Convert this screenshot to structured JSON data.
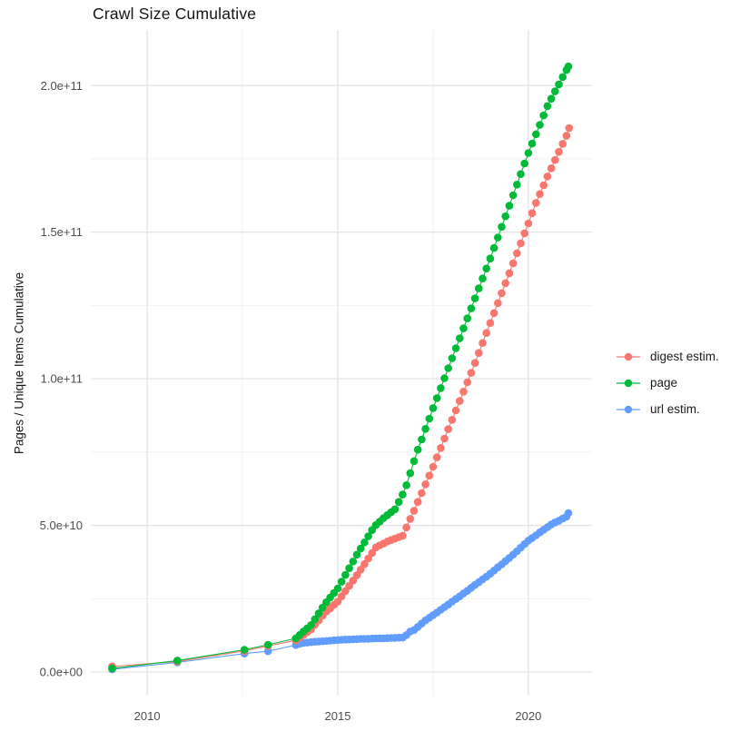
{
  "title": "Crawl Size Cumulative",
  "y_axis_title": "Pages / Unique Items Cumulative",
  "colors": {
    "digest": "#F8766D",
    "page": "#00BA38",
    "url": "#619CFF",
    "grid_major": "#E3E3E3",
    "grid_minor": "#EFEFEF",
    "tick_text": "#4D4D4D",
    "title_text": "#141414",
    "background": "#FFFFFF"
  },
  "legend": {
    "items": [
      {
        "label": "digest estim.",
        "color": "#F8766D"
      },
      {
        "label": "page",
        "color": "#00BA38"
      },
      {
        "label": "url estim.",
        "color": "#619CFF"
      }
    ]
  },
  "chart_data": {
    "type": "scatter",
    "title": "Crawl Size Cumulative",
    "xlabel": "",
    "ylabel": "Pages / Unique Items Cumulative",
    "legend_position": "right",
    "grid": true,
    "xlim": [
      2008.52,
      2021.67
    ],
    "ylim_e9": [
      -8.05,
      218.95
    ],
    "value_scale": 1000000000.0,
    "x_breaks": [
      {
        "v": 2010,
        "label": "2010"
      },
      {
        "v": 2015,
        "label": "2015"
      },
      {
        "v": 2020,
        "label": "2020"
      }
    ],
    "x_minor_breaks": [
      2012.5,
      2017.5
    ],
    "y_breaks": [
      {
        "v": 0,
        "label": "0.0e+00"
      },
      {
        "v": 50,
        "label": "5.0e+10"
      },
      {
        "v": 100,
        "label": "1.0e+11"
      },
      {
        "v": 150,
        "label": "1.5e+11"
      },
      {
        "v": 200,
        "label": "2.0e+11"
      }
    ],
    "y_minor_breaks": [
      25,
      75,
      125,
      175
    ],
    "series": [
      {
        "name": "url estim.",
        "color": "#619CFF",
        "points": [
          [
            2009.08,
            0.9
          ],
          [
            2010.79,
            3.3
          ],
          [
            2012.55,
            6.3
          ],
          [
            2013.17,
            7.1
          ],
          [
            2013.9,
            9.2
          ],
          [
            2014.0,
            9.6
          ],
          [
            2014.1,
            9.9
          ],
          [
            2014.2,
            10.05
          ],
          [
            2014.3,
            10.2
          ],
          [
            2014.4,
            10.3
          ],
          [
            2014.5,
            10.4
          ],
          [
            2014.6,
            10.5
          ],
          [
            2014.7,
            10.6
          ],
          [
            2014.8,
            10.7
          ],
          [
            2014.9,
            10.8
          ],
          [
            2015.0,
            10.9
          ],
          [
            2015.1,
            11.0
          ],
          [
            2015.2,
            11.05
          ],
          [
            2015.3,
            11.1
          ],
          [
            2015.4,
            11.15
          ],
          [
            2015.5,
            11.2
          ],
          [
            2015.6,
            11.3
          ],
          [
            2015.7,
            11.3
          ],
          [
            2015.8,
            11.35
          ],
          [
            2015.9,
            11.4
          ],
          [
            2016.0,
            11.45
          ],
          [
            2016.1,
            11.5
          ],
          [
            2016.2,
            11.5
          ],
          [
            2016.3,
            11.55
          ],
          [
            2016.4,
            11.6
          ],
          [
            2016.5,
            11.65
          ],
          [
            2016.6,
            11.7
          ],
          [
            2016.7,
            11.75
          ],
          [
            2016.8,
            12.6
          ],
          [
            2016.9,
            13.8
          ],
          [
            2017.0,
            14.3
          ],
          [
            2017.1,
            15.4
          ],
          [
            2017.2,
            16.5
          ],
          [
            2017.3,
            17.6
          ],
          [
            2017.4,
            18.5
          ],
          [
            2017.5,
            19.4
          ],
          [
            2017.6,
            20.3
          ],
          [
            2017.7,
            21.2
          ],
          [
            2017.8,
            22.1
          ],
          [
            2017.9,
            23.0
          ],
          [
            2018.0,
            24.0
          ],
          [
            2018.1,
            24.9
          ],
          [
            2018.2,
            25.8
          ],
          [
            2018.3,
            26.8
          ],
          [
            2018.4,
            27.7
          ],
          [
            2018.5,
            28.7
          ],
          [
            2018.6,
            29.7
          ],
          [
            2018.7,
            30.6
          ],
          [
            2018.8,
            31.6
          ],
          [
            2018.9,
            32.5
          ],
          [
            2019.0,
            33.5
          ],
          [
            2019.1,
            34.6
          ],
          [
            2019.2,
            35.7
          ],
          [
            2019.3,
            36.7
          ],
          [
            2019.4,
            37.8
          ],
          [
            2019.5,
            38.9
          ],
          [
            2019.6,
            40.0
          ],
          [
            2019.7,
            41.2
          ],
          [
            2019.8,
            42.4
          ],
          [
            2019.9,
            43.6
          ],
          [
            2020.0,
            44.8
          ],
          [
            2020.1,
            45.7
          ],
          [
            2020.2,
            46.6
          ],
          [
            2020.3,
            47.6
          ],
          [
            2020.4,
            48.5
          ],
          [
            2020.5,
            49.4
          ],
          [
            2020.6,
            50.3
          ],
          [
            2020.7,
            51.0
          ],
          [
            2020.8,
            51.6
          ],
          [
            2020.9,
            52.3
          ],
          [
            2021.0,
            53.0
          ],
          [
            2021.05,
            54.2
          ]
        ]
      },
      {
        "name": "digest estim.",
        "color": "#F8766D",
        "points": [
          [
            2009.08,
            1.9
          ],
          [
            2010.79,
            3.6
          ],
          [
            2012.55,
            7.2
          ],
          [
            2013.17,
            8.9
          ],
          [
            2013.9,
            10.8
          ],
          [
            2014.0,
            11.7
          ],
          [
            2014.1,
            12.6
          ],
          [
            2014.2,
            13.6
          ],
          [
            2014.3,
            14.5
          ],
          [
            2014.4,
            16.1
          ],
          [
            2014.5,
            17.6
          ],
          [
            2014.6,
            19.2
          ],
          [
            2014.7,
            20.6
          ],
          [
            2014.8,
            21.7
          ],
          [
            2014.9,
            22.9
          ],
          [
            2015.0,
            24.0
          ],
          [
            2015.1,
            25.8
          ],
          [
            2015.2,
            27.6
          ],
          [
            2015.3,
            29.4
          ],
          [
            2015.4,
            31.2
          ],
          [
            2015.5,
            33.0
          ],
          [
            2015.6,
            34.9
          ],
          [
            2015.7,
            36.8
          ],
          [
            2015.8,
            38.7
          ],
          [
            2015.9,
            40.6
          ],
          [
            2016.0,
            42.5
          ],
          [
            2016.1,
            43.2
          ],
          [
            2016.2,
            43.8
          ],
          [
            2016.3,
            44.5
          ],
          [
            2016.4,
            45.0
          ],
          [
            2016.5,
            45.5
          ],
          [
            2016.6,
            46.0
          ],
          [
            2016.7,
            46.5
          ],
          [
            2016.8,
            49.3
          ],
          [
            2016.9,
            52.2
          ],
          [
            2017.0,
            55.0
          ],
          [
            2017.1,
            58.0
          ],
          [
            2017.2,
            61.0
          ],
          [
            2017.3,
            64.0
          ],
          [
            2017.4,
            67.0
          ],
          [
            2017.5,
            70.0
          ],
          [
            2017.6,
            73.2
          ],
          [
            2017.7,
            76.4
          ],
          [
            2017.8,
            79.6
          ],
          [
            2017.9,
            82.8
          ],
          [
            2018.0,
            86.0
          ],
          [
            2018.1,
            89.2
          ],
          [
            2018.2,
            92.4
          ],
          [
            2018.3,
            95.6
          ],
          [
            2018.4,
            98.8
          ],
          [
            2018.5,
            102.0
          ],
          [
            2018.6,
            105.4
          ],
          [
            2018.7,
            108.8
          ],
          [
            2018.8,
            112.2
          ],
          [
            2018.9,
            115.6
          ],
          [
            2019.0,
            119.0
          ],
          [
            2019.1,
            122.4
          ],
          [
            2019.2,
            125.8
          ],
          [
            2019.3,
            129.2
          ],
          [
            2019.4,
            132.6
          ],
          [
            2019.5,
            136.0
          ],
          [
            2019.6,
            139.4
          ],
          [
            2019.7,
            142.8
          ],
          [
            2019.8,
            146.2
          ],
          [
            2019.9,
            149.6
          ],
          [
            2020.0,
            153.0
          ],
          [
            2020.1,
            156.5
          ],
          [
            2020.2,
            160.0
          ],
          [
            2020.3,
            163.0
          ],
          [
            2020.4,
            166.0
          ],
          [
            2020.5,
            169.0
          ],
          [
            2020.6,
            171.8
          ],
          [
            2020.7,
            174.6
          ],
          [
            2020.8,
            177.4
          ],
          [
            2020.9,
            180.1
          ],
          [
            2021.0,
            182.9
          ],
          [
            2021.07,
            185.5
          ]
        ]
      },
      {
        "name": "page",
        "color": "#00BA38",
        "points": [
          [
            2009.08,
            1.2
          ],
          [
            2010.79,
            3.9
          ],
          [
            2012.55,
            7.6
          ],
          [
            2013.17,
            9.3
          ],
          [
            2013.9,
            11.5
          ],
          [
            2014.0,
            12.6
          ],
          [
            2014.1,
            13.8
          ],
          [
            2014.2,
            14.9
          ],
          [
            2014.3,
            16.0
          ],
          [
            2014.4,
            18.0
          ],
          [
            2014.5,
            20.0
          ],
          [
            2014.6,
            22.0
          ],
          [
            2014.7,
            23.8
          ],
          [
            2014.8,
            25.4
          ],
          [
            2014.9,
            26.9
          ],
          [
            2015.0,
            28.5
          ],
          [
            2015.1,
            30.8
          ],
          [
            2015.2,
            33.1
          ],
          [
            2015.3,
            35.4
          ],
          [
            2015.4,
            37.7
          ],
          [
            2015.5,
            40.0
          ],
          [
            2015.6,
            42.1
          ],
          [
            2015.7,
            44.2
          ],
          [
            2015.8,
            46.3
          ],
          [
            2015.9,
            48.4
          ],
          [
            2016.0,
            50.1
          ],
          [
            2016.1,
            51.3
          ],
          [
            2016.2,
            52.5
          ],
          [
            2016.3,
            53.5
          ],
          [
            2016.4,
            54.5
          ],
          [
            2016.5,
            55.5
          ],
          [
            2016.6,
            58.0
          ],
          [
            2016.7,
            60.5
          ],
          [
            2016.8,
            63.7
          ],
          [
            2016.9,
            67.8
          ],
          [
            2017.0,
            71.9
          ],
          [
            2017.1,
            75.8
          ],
          [
            2017.2,
            79.3
          ],
          [
            2017.3,
            82.9
          ],
          [
            2017.4,
            86.4
          ],
          [
            2017.5,
            90.0
          ],
          [
            2017.6,
            93.4
          ],
          [
            2017.7,
            96.8
          ],
          [
            2017.8,
            100.2
          ],
          [
            2017.9,
            103.6
          ],
          [
            2018.0,
            107.0
          ],
          [
            2018.1,
            110.4
          ],
          [
            2018.2,
            113.8
          ],
          [
            2018.3,
            117.2
          ],
          [
            2018.4,
            120.6
          ],
          [
            2018.5,
            124.0
          ],
          [
            2018.6,
            127.4
          ],
          [
            2018.7,
            130.8
          ],
          [
            2018.8,
            134.2
          ],
          [
            2018.9,
            137.6
          ],
          [
            2019.0,
            141.0
          ],
          [
            2019.1,
            144.6
          ],
          [
            2019.2,
            148.2
          ],
          [
            2019.3,
            151.8
          ],
          [
            2019.4,
            155.4
          ],
          [
            2019.5,
            159.0
          ],
          [
            2019.6,
            162.6
          ],
          [
            2019.7,
            166.2
          ],
          [
            2019.8,
            169.8
          ],
          [
            2019.9,
            173.4
          ],
          [
            2020.0,
            177.0
          ],
          [
            2020.1,
            180.2
          ],
          [
            2020.2,
            183.4
          ],
          [
            2020.3,
            186.6
          ],
          [
            2020.4,
            189.8
          ],
          [
            2020.5,
            193.0
          ],
          [
            2020.6,
            195.5
          ],
          [
            2020.7,
            198.0
          ],
          [
            2020.8,
            200.4
          ],
          [
            2020.9,
            202.9
          ],
          [
            2021.0,
            205.3
          ],
          [
            2021.05,
            206.5
          ]
        ]
      }
    ]
  }
}
